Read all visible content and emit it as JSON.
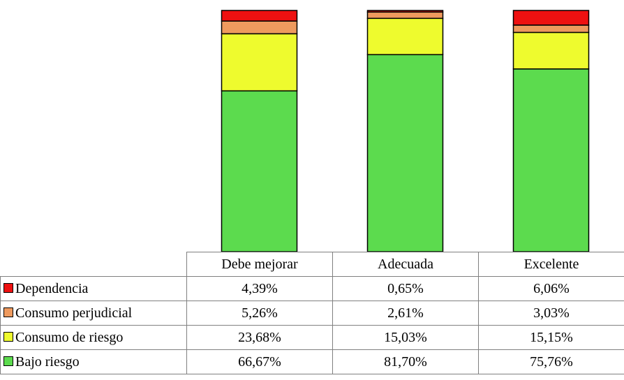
{
  "chart_data": {
    "type": "bar",
    "stacked": true,
    "categories": [
      "Debe mejorar",
      "Adecuada",
      "Excelente"
    ],
    "series": [
      {
        "name": "Bajo riesgo",
        "values": [
          66.67,
          81.7,
          75.76
        ],
        "labels": [
          "66,67%",
          "81,70%",
          "75,76%"
        ],
        "color": "#5cdb4e"
      },
      {
        "name": "Consumo de riesgo",
        "values": [
          23.68,
          15.03,
          15.15
        ],
        "labels": [
          "23,68%",
          "15,03%",
          "15,15%"
        ],
        "color": "#eefb2e"
      },
      {
        "name": "Consumo perjudicial",
        "values": [
          5.26,
          2.61,
          3.03
        ],
        "labels": [
          "5,26%",
          "2,61%",
          "3,03%"
        ],
        "color": "#ee9a5e"
      },
      {
        "name": "Dependencia",
        "values": [
          4.39,
          0.65,
          6.06
        ],
        "labels": [
          "4,39%",
          "0,65%",
          "6,06%"
        ],
        "color": "#ee1111"
      }
    ],
    "ylim": [
      0,
      100
    ],
    "grid": false,
    "legend": "table-left"
  }
}
